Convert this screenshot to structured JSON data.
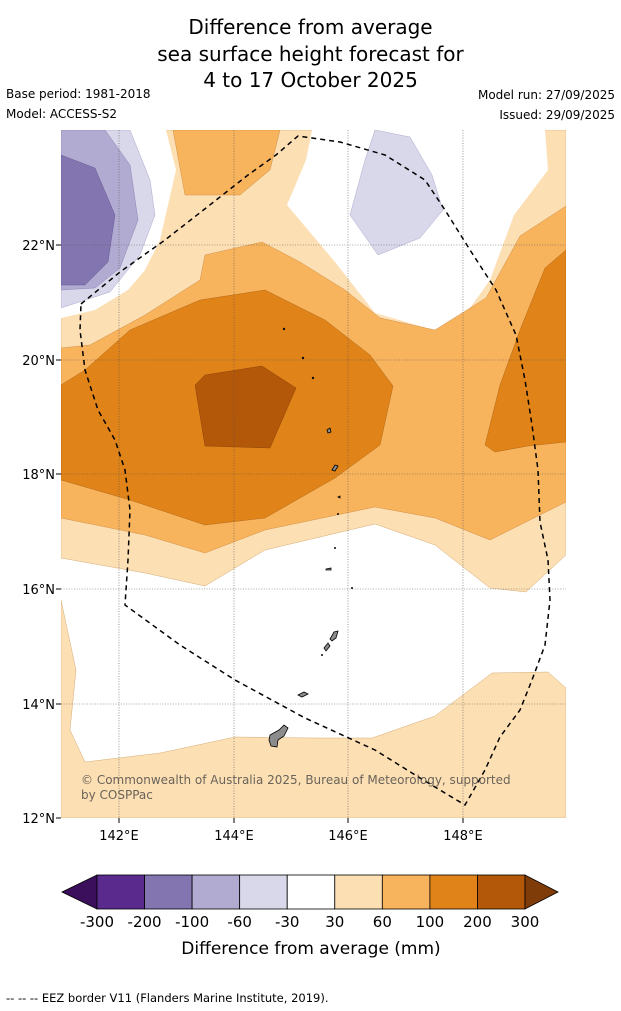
{
  "title": {
    "line1": "Difference from average",
    "line2": "sea surface height forecast for",
    "line3": "4 to 17 October 2025"
  },
  "meta": {
    "base_period": "Base period: 1981-2018",
    "model": "Model: ACCESS-S2",
    "model_run": "Model run: 27/09/2025",
    "issued": "Issued: 29/09/2025"
  },
  "map": {
    "lon_labels": [
      "142°E",
      "144°E",
      "146°E",
      "148°E"
    ],
    "lat_labels": [
      "22°N",
      "20°N",
      "18°N",
      "16°N",
      "14°N",
      "12°N"
    ],
    "copyright_line1": "© Commonwealth of Australia 2025, Bureau of Meteorology, supported",
    "copyright_line2": "by COSPPac"
  },
  "colorbar": {
    "tick_labels": [
      "-300",
      "-200",
      "-100",
      "-60",
      "-30",
      "30",
      "60",
      "100",
      "200",
      "300"
    ],
    "colors": [
      "#3b0f5b",
      "#5a2a8c",
      "#8275b0",
      "#b1abd1",
      "#d8d8ea",
      "#ffffff",
      "#fddfb4",
      "#f8b35d",
      "#e08318",
      "#b35809",
      "#7f3b08"
    ],
    "label": "Difference from average (mm)"
  },
  "footnote": "--  --  -- EEZ border V11 (Flanders Marine Institute, 2019)."
}
